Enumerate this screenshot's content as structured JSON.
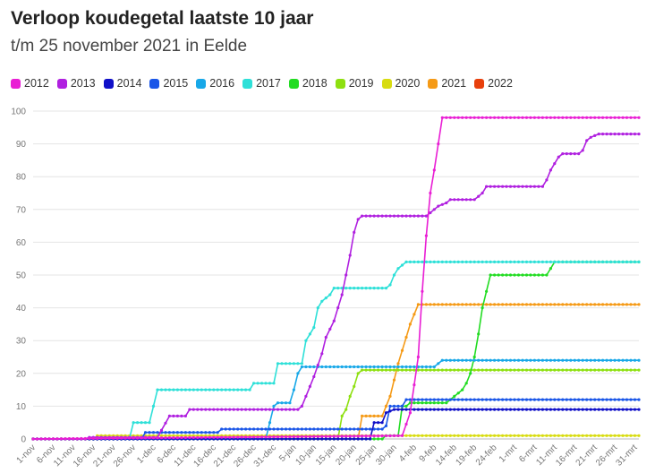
{
  "chart_data": {
    "type": "line",
    "title": "Verloop koudegetal laatste 10 jaar",
    "subtitle": "t/m 25 november 2021 in Eelde",
    "ylim": [
      0,
      100
    ],
    "yticks": [
      0,
      10,
      20,
      30,
      40,
      50,
      60,
      70,
      80,
      90,
      100
    ],
    "x_range_days": [
      0,
      151
    ],
    "xticks": [
      {
        "day": 0,
        "label": "1-nov"
      },
      {
        "day": 5,
        "label": "6-nov"
      },
      {
        "day": 10,
        "label": "11-nov"
      },
      {
        "day": 15,
        "label": "16-nov"
      },
      {
        "day": 20,
        "label": "21-nov"
      },
      {
        "day": 25,
        "label": "26-nov"
      },
      {
        "day": 30,
        "label": "1-dec"
      },
      {
        "day": 35,
        "label": "6-dec"
      },
      {
        "day": 40,
        "label": "11-dec"
      },
      {
        "day": 45,
        "label": "16-dec"
      },
      {
        "day": 50,
        "label": "21-dec"
      },
      {
        "day": 55,
        "label": "26-dec"
      },
      {
        "day": 60,
        "label": "31-dec"
      },
      {
        "day": 65,
        "label": "5-jan"
      },
      {
        "day": 70,
        "label": "10-jan"
      },
      {
        "day": 75,
        "label": "15-jan"
      },
      {
        "day": 80,
        "label": "20-jan"
      },
      {
        "day": 85,
        "label": "25-jan"
      },
      {
        "day": 90,
        "label": "30-jan"
      },
      {
        "day": 95,
        "label": "4-feb"
      },
      {
        "day": 100,
        "label": "9-feb"
      },
      {
        "day": 105,
        "label": "14-feb"
      },
      {
        "day": 110,
        "label": "19-feb"
      },
      {
        "day": 115,
        "label": "24-feb"
      },
      {
        "day": 120,
        "label": "1-mrt"
      },
      {
        "day": 125,
        "label": "6-mrt"
      },
      {
        "day": 130,
        "label": "11-mrt"
      },
      {
        "day": 135,
        "label": "16-mrt"
      },
      {
        "day": 140,
        "label": "21-mrt"
      },
      {
        "day": 145,
        "label": "26-mrt"
      },
      {
        "day": 150,
        "label": "31-mrt"
      }
    ],
    "legend_placement": "top-left",
    "series": [
      {
        "name": "2012",
        "color": "#e91ed4",
        "points": [
          [
            0,
            0
          ],
          [
            92,
            1
          ],
          [
            94,
            8
          ],
          [
            96,
            25
          ],
          [
            97,
            45
          ],
          [
            98,
            62
          ],
          [
            99,
            75
          ],
          [
            100,
            82
          ],
          [
            101,
            90
          ],
          [
            102,
            98
          ],
          [
            151,
            98
          ]
        ]
      },
      {
        "name": "2013",
        "color": "#b020e0",
        "points": [
          [
            0,
            0
          ],
          [
            13,
            0
          ],
          [
            14,
            0.5
          ],
          [
            31,
            0.5
          ],
          [
            34,
            7
          ],
          [
            38,
            7
          ],
          [
            39,
            9
          ],
          [
            66,
            9
          ],
          [
            67,
            10
          ],
          [
            68,
            13
          ],
          [
            70,
            19
          ],
          [
            72,
            26
          ],
          [
            73,
            31
          ],
          [
            75,
            36
          ],
          [
            76,
            40
          ],
          [
            77,
            44
          ],
          [
            78,
            50
          ],
          [
            79,
            56
          ],
          [
            80,
            63
          ],
          [
            81,
            67
          ],
          [
            82,
            68
          ],
          [
            98,
            68
          ],
          [
            99,
            69
          ],
          [
            100,
            70
          ],
          [
            101,
            71
          ],
          [
            103,
            72
          ],
          [
            104,
            73
          ],
          [
            110,
            73
          ],
          [
            111,
            74
          ],
          [
            112,
            75
          ],
          [
            113,
            77
          ],
          [
            127,
            77
          ],
          [
            128,
            79
          ],
          [
            129,
            82
          ],
          [
            130,
            84
          ],
          [
            131,
            86
          ],
          [
            132,
            87
          ],
          [
            136,
            87
          ],
          [
            137,
            88
          ],
          [
            138,
            91
          ],
          [
            139,
            92
          ],
          [
            141,
            93
          ],
          [
            151,
            93
          ]
        ]
      },
      {
        "name": "2014",
        "color": "#1010c8",
        "points": [
          [
            0,
            0
          ],
          [
            84,
            0
          ],
          [
            85,
            5
          ],
          [
            87,
            5
          ],
          [
            88,
            8
          ],
          [
            90,
            9
          ],
          [
            151,
            9
          ]
        ]
      },
      {
        "name": "2015",
        "color": "#1a56e8",
        "points": [
          [
            0,
            0
          ],
          [
            27,
            0
          ],
          [
            28,
            2
          ],
          [
            46,
            2
          ],
          [
            47,
            3
          ],
          [
            87,
            3
          ],
          [
            88,
            4
          ],
          [
            89,
            10
          ],
          [
            92,
            10
          ],
          [
            93,
            12
          ],
          [
            151,
            12
          ]
        ]
      },
      {
        "name": "2016",
        "color": "#18a8e8",
        "points": [
          [
            0,
            0
          ],
          [
            58,
            0
          ],
          [
            59,
            5
          ],
          [
            60,
            10
          ],
          [
            61,
            11
          ],
          [
            64,
            11
          ],
          [
            65,
            15
          ],
          [
            66,
            20
          ],
          [
            67,
            22
          ],
          [
            100,
            22
          ],
          [
            101,
            23
          ],
          [
            102,
            24
          ],
          [
            151,
            24
          ]
        ]
      },
      {
        "name": "2017",
        "color": "#2ee0d8",
        "points": [
          [
            0,
            0
          ],
          [
            24,
            0
          ],
          [
            25,
            5
          ],
          [
            29,
            5
          ],
          [
            30,
            10
          ],
          [
            31,
            15
          ],
          [
            54,
            15
          ],
          [
            55,
            17
          ],
          [
            60,
            17
          ],
          [
            61,
            23
          ],
          [
            67,
            23
          ],
          [
            68,
            30
          ],
          [
            70,
            34
          ],
          [
            71,
            40
          ],
          [
            72,
            42
          ],
          [
            73,
            43
          ],
          [
            74,
            44
          ],
          [
            75,
            46
          ],
          [
            88,
            46
          ],
          [
            89,
            47
          ],
          [
            90,
            50
          ],
          [
            91,
            52
          ],
          [
            92,
            53
          ],
          [
            93,
            54
          ],
          [
            151,
            54
          ]
        ]
      },
      {
        "name": "2018",
        "color": "#22dc22",
        "points": [
          [
            0,
            0
          ],
          [
            87,
            0
          ],
          [
            88,
            1
          ],
          [
            91,
            1
          ],
          [
            92,
            10
          ],
          [
            93,
            10
          ],
          [
            94,
            11
          ],
          [
            103,
            11
          ],
          [
            104,
            12
          ],
          [
            105,
            13
          ],
          [
            106,
            14
          ],
          [
            107,
            15
          ],
          [
            108,
            17
          ],
          [
            109,
            20
          ],
          [
            110,
            25
          ],
          [
            111,
            32
          ],
          [
            112,
            40
          ],
          [
            113,
            45
          ],
          [
            114,
            50
          ],
          [
            128,
            50
          ],
          [
            129,
            52
          ],
          [
            130,
            54
          ],
          [
            151,
            54
          ]
        ]
      },
      {
        "name": "2019",
        "color": "#8ee010",
        "points": [
          [
            0,
            0
          ],
          [
            76,
            0
          ],
          [
            77,
            7
          ],
          [
            78,
            9
          ],
          [
            79,
            13
          ],
          [
            80,
            16
          ],
          [
            81,
            20
          ],
          [
            82,
            21
          ],
          [
            151,
            21
          ]
        ]
      },
      {
        "name": "2020",
        "color": "#d8dc10",
        "points": [
          [
            0,
            0
          ],
          [
            15,
            0
          ],
          [
            16,
            1
          ],
          [
            151,
            1
          ]
        ]
      },
      {
        "name": "2021",
        "color": "#f59a16",
        "points": [
          [
            0,
            0
          ],
          [
            81,
            0
          ],
          [
            82,
            7
          ],
          [
            87,
            7
          ],
          [
            88,
            10
          ],
          [
            89,
            13
          ],
          [
            90,
            18
          ],
          [
            91,
            23
          ],
          [
            92,
            27
          ],
          [
            93,
            31
          ],
          [
            94,
            35
          ],
          [
            95,
            38
          ],
          [
            96,
            41
          ],
          [
            151,
            41
          ]
        ]
      },
      {
        "name": "2022",
        "color": "#e8400c",
        "points": [
          [
            0,
            0
          ],
          [
            23,
            0
          ]
        ]
      }
    ]
  }
}
